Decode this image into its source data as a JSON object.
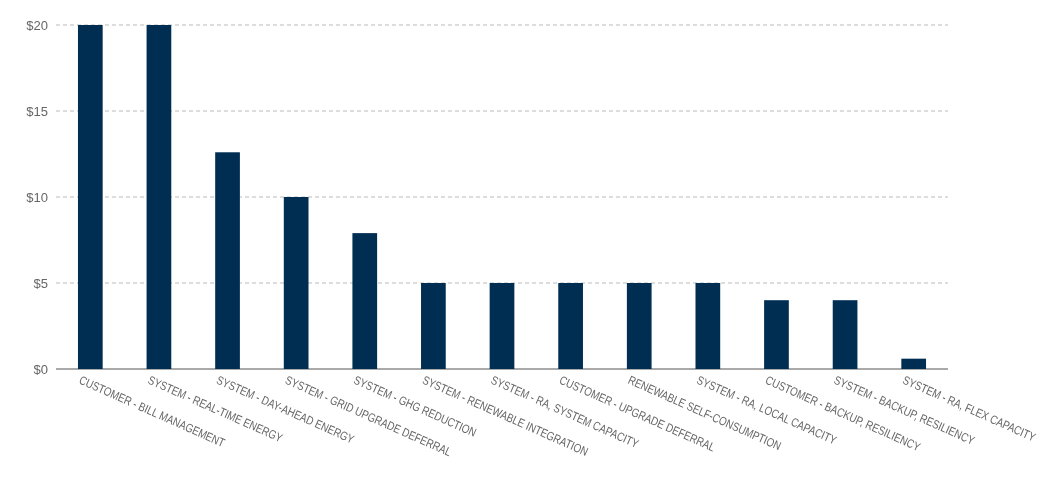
{
  "chart_data": {
    "type": "bar",
    "categories": [
      "CUSTOMER - BILL MANAGEMENT",
      "SYSTEM - REAL-TIME ENERGY",
      "SYSTEM - DAY-AHEAD ENERGY",
      "SYSTEM - GRID UPGRADE DEFERRAL",
      "SYSTEM - GHG REDUCTION",
      "SYSTEM - RENEWABLE INTEGRATION",
      "SYSTEM - RA, SYSTEM CAPACITY",
      "CUSTOMER - UPGRADE DEFERRAL",
      "RENEWABLE SELF-CONSUMPTION",
      "SYSTEM - RA, LOCAL CAPACITY",
      "CUSTOMER - BACKUP, RESILIENCY",
      "SYSTEM - BACKUP, RESILIENCY",
      "SYSTEM - RA, FLEX CAPACITY"
    ],
    "values": [
      20,
      20,
      12.6,
      10,
      7.9,
      5,
      5,
      5,
      5,
      5,
      4,
      4,
      0.6
    ],
    "color": "#002d52",
    "ylim": [
      0,
      20
    ],
    "yticks": [
      {
        "value": 0,
        "label": "$0"
      },
      {
        "value": 5,
        "label": "$5"
      },
      {
        "value": 10,
        "label": "$10"
      },
      {
        "value": 15,
        "label": "$15"
      },
      {
        "value": 20,
        "label": "$20"
      }
    ],
    "grid": "y"
  }
}
